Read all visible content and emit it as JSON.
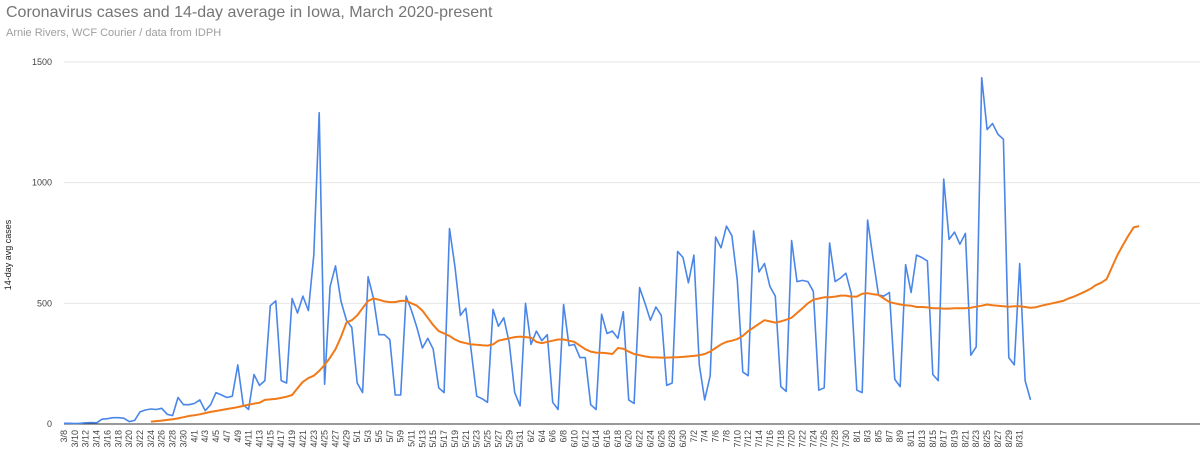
{
  "title": "Coronavirus cases and 14-day average in Iowa, March 2020-present",
  "subtitle": "Arnie Rivers, WCF Courier / data from IDPH",
  "colors": {
    "daily": "#4a86e8",
    "average": "#f07a1a",
    "grid": "#e6e6e6",
    "axis": "#333333"
  },
  "chart_data": {
    "type": "line",
    "title": "Coronavirus cases and 14-day average in Iowa, March 2020-present",
    "ylabel": "14-day avg cases",
    "xlabel": "",
    "ylim": [
      0,
      1500
    ],
    "yticks": [
      0,
      500,
      1000,
      1500
    ],
    "grid": true,
    "legend": "none",
    "x_start": "3/8",
    "x_tick_labels": [
      "3/8",
      "3/10",
      "3/12",
      "3/14",
      "3/16",
      "3/18",
      "3/20",
      "3/22",
      "3/24",
      "3/26",
      "3/28",
      "3/30",
      "4/1",
      "4/3",
      "4/5",
      "4/7",
      "4/9",
      "4/11",
      "4/13",
      "4/15",
      "4/17",
      "4/19",
      "4/21",
      "4/23",
      "4/25",
      "4/27",
      "4/29",
      "5/1",
      "5/3",
      "5/5",
      "5/7",
      "5/9",
      "5/11",
      "5/13",
      "5/15",
      "5/17",
      "5/19",
      "5/21",
      "5/23",
      "5/25",
      "5/27",
      "5/29",
      "5/31",
      "6/2",
      "6/4",
      "6/6",
      "6/8",
      "6/10",
      "6/12",
      "6/14",
      "6/16",
      "6/18",
      "6/20",
      "6/22",
      "6/24",
      "6/26",
      "6/28",
      "6/30",
      "7/2",
      "7/4",
      "7/6",
      "7/8",
      "7/10",
      "7/12",
      "7/14",
      "7/16",
      "7/18",
      "7/20",
      "7/22",
      "7/24",
      "7/26",
      "7/28",
      "7/30",
      "8/1",
      "8/3",
      "8/5",
      "8/7",
      "8/9",
      "8/11",
      "8/13",
      "8/15",
      "8/17",
      "8/19",
      "8/21",
      "8/23",
      "8/25",
      "8/27",
      "8/29",
      "8/31"
    ],
    "series": [
      {
        "key": "daily",
        "values": [
          3,
          3,
          2,
          3,
          5,
          6,
          5,
          20,
          22,
          26,
          26,
          24,
          10,
          15,
          50,
          58,
          62,
          60,
          65,
          40,
          35,
          110,
          80,
          80,
          85,
          100,
          55,
          80,
          130,
          120,
          110,
          115,
          245,
          80,
          60,
          205,
          160,
          180,
          490,
          510,
          180,
          170,
          520,
          460,
          530,
          470,
          700,
          1290,
          165,
          570,
          655,
          510,
          430,
          400,
          170,
          130,
          610,
          520,
          370,
          370,
          350,
          120,
          120,
          530,
          470,
          400,
          315,
          355,
          310,
          150,
          130,
          810,
          650,
          450,
          480,
          300,
          115,
          105,
          90,
          475,
          405,
          440,
          335,
          130,
          75,
          500,
          330,
          385,
          345,
          370,
          90,
          60,
          495,
          325,
          330,
          275,
          275,
          80,
          60,
          455,
          375,
          385,
          355,
          465,
          100,
          85,
          565,
          500,
          430,
          485,
          450,
          160,
          170,
          715,
          690,
          585,
          700,
          245,
          100,
          200,
          775,
          730,
          820,
          780,
          595,
          215,
          200,
          800,
          630,
          665,
          570,
          530,
          155,
          135,
          760,
          590,
          595,
          590,
          550,
          140,
          150,
          750,
          590,
          605,
          625,
          540,
          140,
          130,
          845,
          685,
          535,
          530,
          545,
          185,
          155,
          660,
          545,
          700,
          690,
          675,
          205,
          180,
          1015,
          765,
          795,
          745,
          790,
          285,
          320,
          1435,
          1220,
          1245,
          1200,
          1180,
          275,
          245,
          665,
          180,
          100
        ]
      },
      {
        "key": "average",
        "start_index": 16,
        "values": [
          10,
          12,
          14,
          17,
          20,
          23,
          28,
          33,
          36,
          40,
          45,
          50,
          54,
          58,
          62,
          66,
          70,
          75,
          80,
          84,
          88,
          100,
          102,
          104,
          108,
          113,
          120,
          148,
          175,
          190,
          200,
          220,
          245,
          275,
          310,
          360,
          420,
          430,
          450,
          480,
          510,
          520,
          515,
          508,
          505,
          505,
          510,
          510,
          500,
          490,
          470,
          440,
          410,
          385,
          375,
          365,
          350,
          340,
          335,
          330,
          328,
          326,
          325,
          330,
          345,
          350,
          355,
          360,
          362,
          360,
          358,
          340,
          335,
          340,
          345,
          350,
          350,
          345,
          340,
          325,
          310,
          300,
          296,
          295,
          293,
          290,
          315,
          312,
          300,
          290,
          285,
          280,
          277,
          276,
          275,
          275,
          276,
          277,
          278,
          280,
          282,
          285,
          290,
          300,
          315,
          330,
          340,
          345,
          352,
          365,
          385,
          400,
          415,
          430,
          425,
          420,
          425,
          432,
          440,
          460,
          480,
          500,
          515,
          520,
          525,
          525,
          528,
          532,
          532,
          528,
          528,
          540,
          542,
          538,
          535,
          520,
          505,
          500,
          495,
          492,
          490,
          485,
          485,
          483,
          480,
          480,
          478,
          478,
          480,
          480,
          480,
          482,
          486,
          490,
          495,
          492,
          490,
          488,
          486,
          488,
          488,
          485,
          482,
          484,
          490,
          495,
          500,
          505,
          510,
          520,
          528,
          538,
          548,
          560,
          575,
          585,
          600,
          650,
          700,
          740,
          780,
          815,
          820
        ]
      }
    ]
  }
}
